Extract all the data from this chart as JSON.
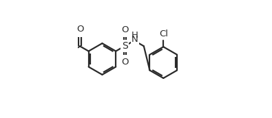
{
  "bg_color": "#ffffff",
  "line_color": "#2a2a2a",
  "text_color": "#2a2a2a",
  "line_width": 1.6,
  "figsize": [
    3.95,
    1.72
  ],
  "dpi": 100,
  "atoms": {
    "O_label": "O",
    "S_label": "S",
    "N_label": "H",
    "Cl_label": "Cl",
    "O1_label": "O",
    "O2_label": "O"
  },
  "lcx": 0.21,
  "lcy": 0.5,
  "lr": 0.135,
  "rcx": 0.735,
  "rcy": 0.47,
  "rr": 0.135
}
